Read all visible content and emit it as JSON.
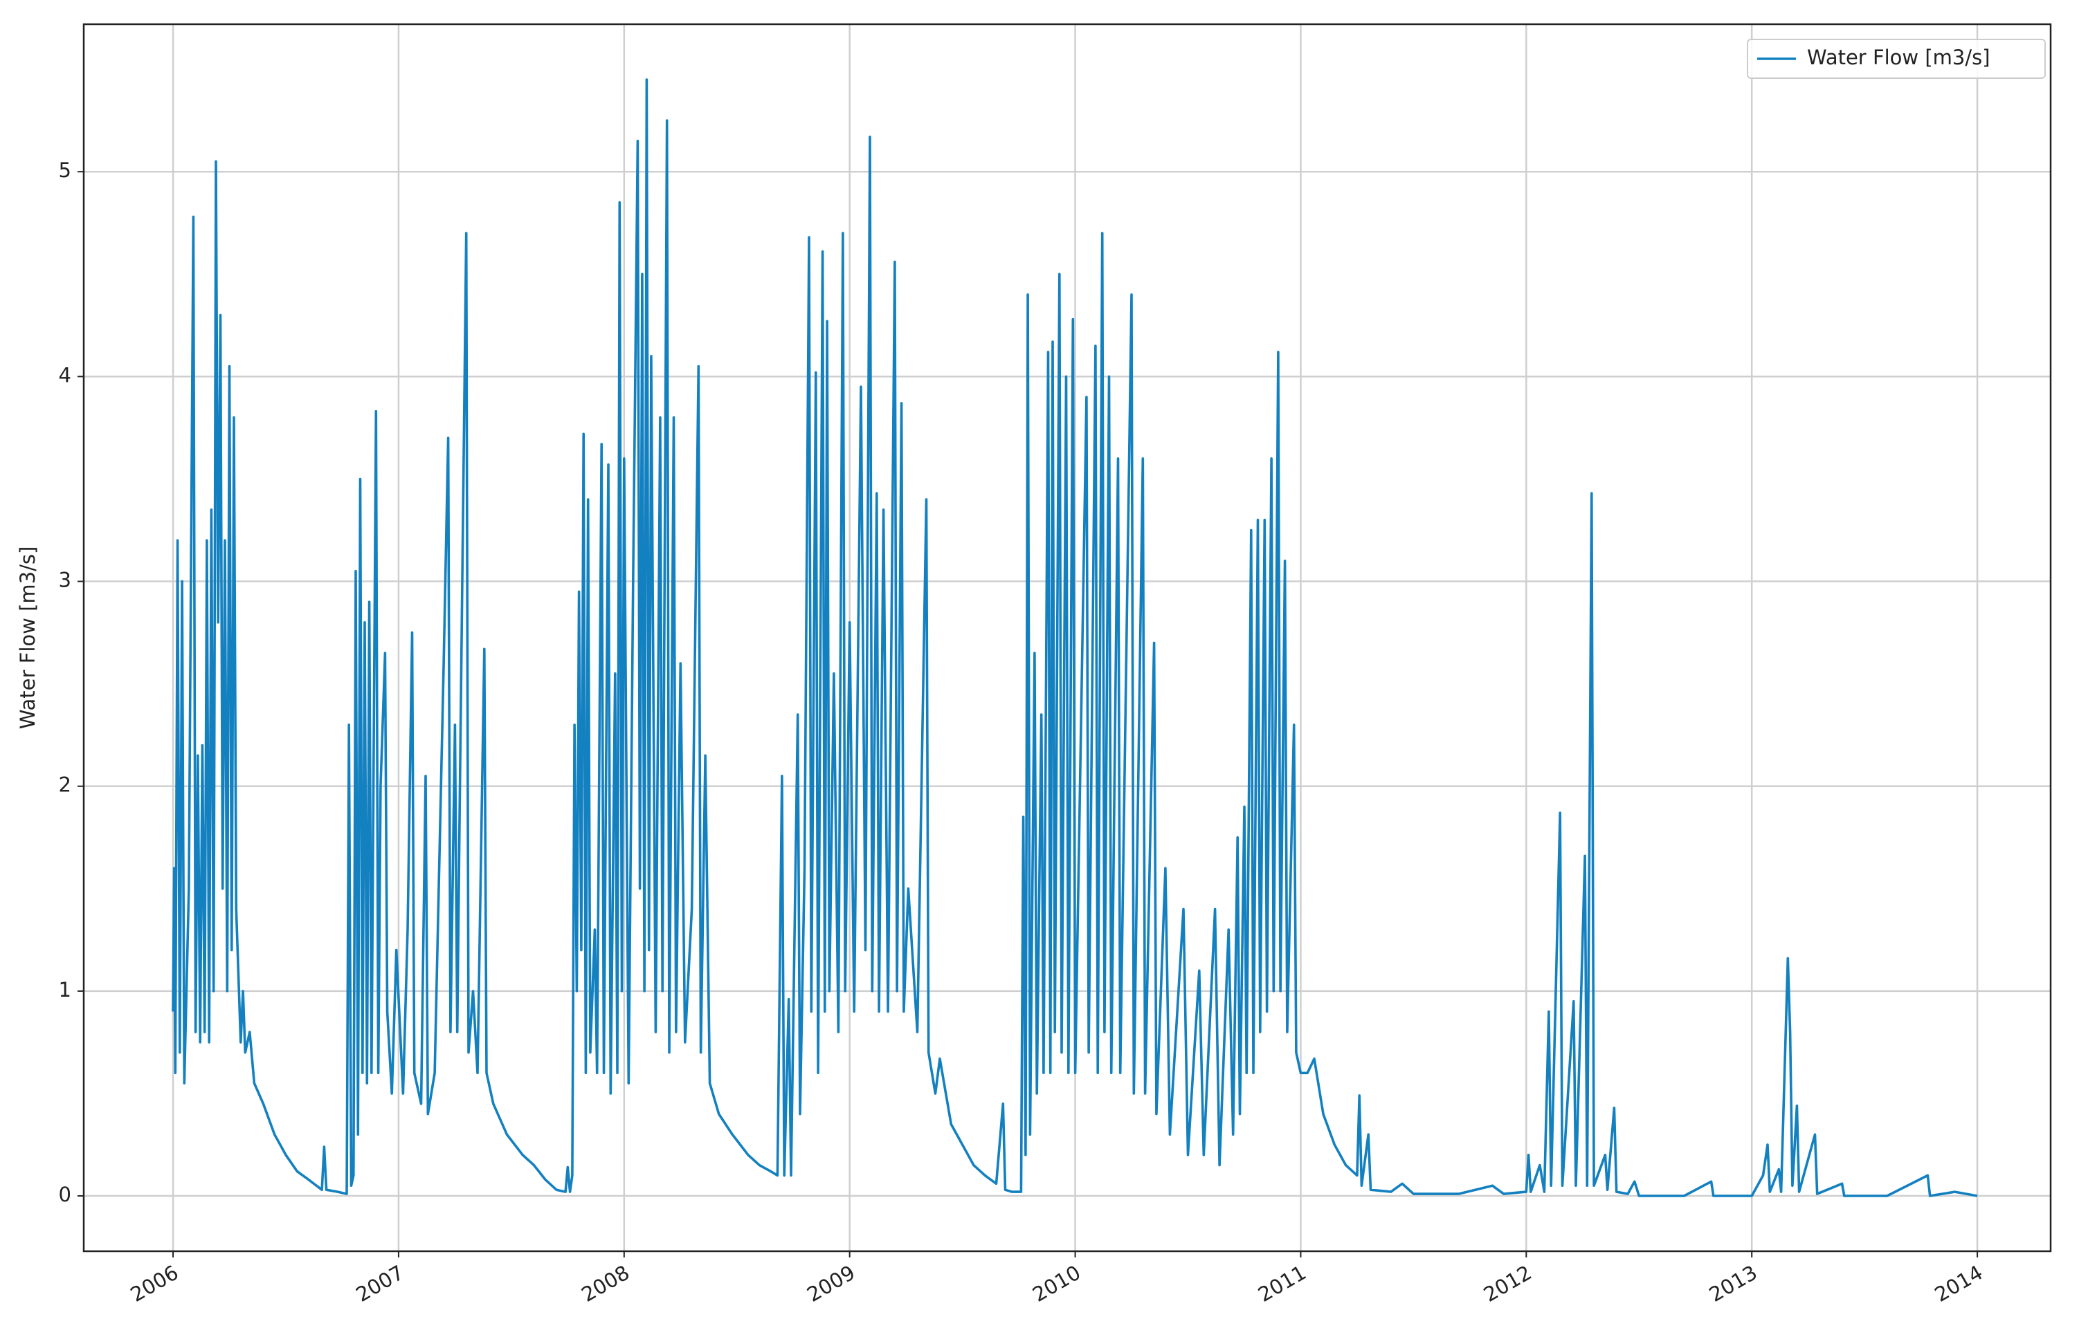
{
  "chart_data": {
    "type": "line",
    "ylabel": "Water Flow [m3/s]",
    "legend": "upper right",
    "grid": true,
    "xlim": [
      2005.604,
      2014.325
    ],
    "ylim": [
      -0.27,
      5.72
    ],
    "xticks": [
      2006,
      2007,
      2008,
      2009,
      2010,
      2011,
      2012,
      2013,
      2014
    ],
    "yticks": [
      0,
      1,
      2,
      3,
      4,
      5
    ],
    "x": [
      2006.0,
      2006.005,
      2006.01,
      2006.02,
      2006.03,
      2006.04,
      2006.05,
      2006.07,
      2006.09,
      2006.1,
      2006.11,
      2006.12,
      2006.13,
      2006.14,
      2006.15,
      2006.16,
      2006.17,
      2006.18,
      2006.19,
      2006.2,
      2006.21,
      2006.22,
      2006.23,
      2006.24,
      2006.25,
      2006.26,
      2006.27,
      2006.28,
      2006.3,
      2006.31,
      2006.32,
      2006.34,
      2006.36,
      2006.4,
      2006.45,
      2006.5,
      2006.55,
      2006.6,
      2006.66,
      2006.67,
      2006.68,
      2006.73,
      2006.77,
      2006.78,
      2006.79,
      2006.8,
      2006.81,
      2006.82,
      2006.83,
      2006.84,
      2006.85,
      2006.86,
      2006.87,
      2006.88,
      2006.9,
      2006.91,
      2006.92,
      2006.94,
      2006.95,
      2006.97,
      2006.99,
      2007.02,
      2007.04,
      2007.06,
      2007.07,
      2007.1,
      2007.12,
      2007.13,
      2007.16,
      2007.2,
      2007.22,
      2007.23,
      2007.25,
      2007.26,
      2007.27,
      2007.3,
      2007.31,
      2007.33,
      2007.35,
      2007.38,
      2007.39,
      2007.42,
      2007.48,
      2007.55,
      2007.6,
      2007.65,
      2007.7,
      2007.74,
      2007.75,
      2007.76,
      2007.77,
      2007.78,
      2007.79,
      2007.8,
      2007.81,
      2007.82,
      2007.83,
      2007.84,
      2007.85,
      2007.87,
      2007.88,
      2007.9,
      2007.91,
      2007.93,
      2007.94,
      2007.96,
      2007.97,
      2007.98,
      2007.99,
      2008.0,
      2008.02,
      2008.04,
      2008.06,
      2008.07,
      2008.08,
      2008.09,
      2008.1,
      2008.11,
      2008.12,
      2008.14,
      2008.16,
      2008.17,
      2008.19,
      2008.2,
      2008.22,
      2008.23,
      2008.25,
      2008.27,
      2008.3,
      2008.33,
      2008.34,
      2008.36,
      2008.38,
      2008.42,
      2008.48,
      2008.55,
      2008.6,
      2008.65,
      2008.68,
      2008.7,
      2008.71,
      2008.73,
      2008.74,
      2008.77,
      2008.78,
      2008.8,
      2008.82,
      2008.83,
      2008.85,
      2008.86,
      2008.88,
      2008.89,
      2008.9,
      2008.91,
      2008.93,
      2008.95,
      2008.97,
      2008.98,
      2009.0,
      2009.02,
      2009.05,
      2009.07,
      2009.09,
      2009.1,
      2009.12,
      2009.13,
      2009.15,
      2009.17,
      2009.2,
      2009.21,
      2009.23,
      2009.24,
      2009.26,
      2009.3,
      2009.34,
      2009.35,
      2009.38,
      2009.4,
      2009.45,
      2009.5,
      2009.55,
      2009.6,
      2009.65,
      2009.68,
      2009.69,
      2009.72,
      2009.76,
      2009.77,
      2009.78,
      2009.79,
      2009.8,
      2009.82,
      2009.83,
      2009.85,
      2009.86,
      2009.88,
      2009.89,
      2009.9,
      2009.91,
      2009.93,
      2009.94,
      2009.96,
      2009.97,
      2009.99,
      2010.0,
      2010.05,
      2010.06,
      2010.09,
      2010.1,
      2010.12,
      2010.13,
      2010.15,
      2010.16,
      2010.19,
      2010.2,
      2010.25,
      2010.26,
      2010.3,
      2010.31,
      2010.35,
      2010.36,
      2010.4,
      2010.42,
      2010.48,
      2010.5,
      2010.55,
      2010.57,
      2010.62,
      2010.64,
      2010.68,
      2010.7,
      2010.72,
      2010.73,
      2010.75,
      2010.76,
      2010.78,
      2010.79,
      2010.81,
      2010.82,
      2010.84,
      2010.85,
      2010.87,
      2010.88,
      2010.9,
      2010.91,
      2010.93,
      2010.94,
      2010.97,
      2010.98,
      2011.0,
      2011.03,
      2011.06,
      2011.1,
      2011.15,
      2011.2,
      2011.25,
      2011.26,
      2011.27,
      2011.3,
      2011.31,
      2011.4,
      2011.45,
      2011.5,
      2011.6,
      2011.7,
      2011.85,
      2011.9,
      2012.0,
      2012.01,
      2012.02,
      2012.06,
      2012.08,
      2012.1,
      2012.11,
      2012.15,
      2012.16,
      2012.21,
      2012.22,
      2012.26,
      2012.27,
      2012.29,
      2012.3,
      2012.35,
      2012.36,
      2012.39,
      2012.4,
      2012.45,
      2012.48,
      2012.5,
      2012.7,
      2012.82,
      2012.83,
      2013.0,
      2013.05,
      2013.07,
      2013.08,
      2013.12,
      2013.13,
      2013.16,
      2013.17,
      2013.18,
      2013.2,
      2013.21,
      2013.28,
      2013.29,
      2013.4,
      2013.41,
      2013.6,
      2013.78,
      2013.79,
      2013.9,
      2014.0
    ],
    "series": [
      {
        "name": "Water Flow [m3/s]",
        "color": "#1380c0",
        "values": [
          0.9,
          1.6,
          0.6,
          3.2,
          0.7,
          3.0,
          0.55,
          1.5,
          4.78,
          0.8,
          2.15,
          0.75,
          2.2,
          0.8,
          3.2,
          0.75,
          3.35,
          1.0,
          5.05,
          2.8,
          4.3,
          1.5,
          3.2,
          1.0,
          4.05,
          1.2,
          3.8,
          1.4,
          0.75,
          1.0,
          0.7,
          0.8,
          0.55,
          0.45,
          0.3,
          0.2,
          0.12,
          0.08,
          0.03,
          0.24,
          0.03,
          0.02,
          0.01,
          2.3,
          0.05,
          0.1,
          3.05,
          0.3,
          3.5,
          0.6,
          2.8,
          0.55,
          2.9,
          0.6,
          3.83,
          0.6,
          2.0,
          2.65,
          0.9,
          0.5,
          1.2,
          0.5,
          1.3,
          2.75,
          0.6,
          0.45,
          2.05,
          0.4,
          0.6,
          2.6,
          3.7,
          0.8,
          2.3,
          0.8,
          1.8,
          4.7,
          0.7,
          1.0,
          0.6,
          2.67,
          0.6,
          0.45,
          0.3,
          0.2,
          0.15,
          0.08,
          0.03,
          0.02,
          0.14,
          0.02,
          0.1,
          2.3,
          1.0,
          2.95,
          1.2,
          3.72,
          0.6,
          3.4,
          0.7,
          1.3,
          0.6,
          3.67,
          0.6,
          3.57,
          0.5,
          2.55,
          0.6,
          4.85,
          1.0,
          3.6,
          0.55,
          3.0,
          5.15,
          1.5,
          4.5,
          1.0,
          5.45,
          1.2,
          4.1,
          0.8,
          3.8,
          1.0,
          5.25,
          0.7,
          3.8,
          0.8,
          2.6,
          0.75,
          1.4,
          4.05,
          0.7,
          2.15,
          0.55,
          0.4,
          0.3,
          0.2,
          0.15,
          0.12,
          0.1,
          2.05,
          0.1,
          0.96,
          0.1,
          2.35,
          0.4,
          1.6,
          4.68,
          0.9,
          4.02,
          0.6,
          4.61,
          0.9,
          4.27,
          1.0,
          2.55,
          0.8,
          4.7,
          1.0,
          2.8,
          0.9,
          3.95,
          1.2,
          5.17,
          1.0,
          3.43,
          0.9,
          3.35,
          0.9,
          4.56,
          1.0,
          3.87,
          0.9,
          1.5,
          0.8,
          3.4,
          0.7,
          0.5,
          0.67,
          0.35,
          0.25,
          0.15,
          0.1,
          0.06,
          0.45,
          0.03,
          0.02,
          0.02,
          1.85,
          0.2,
          4.4,
          0.3,
          2.65,
          0.5,
          2.35,
          0.6,
          4.12,
          0.6,
          4.17,
          0.8,
          4.5,
          0.7,
          4.0,
          0.6,
          4.28,
          0.6,
          3.9,
          0.7,
          4.15,
          0.6,
          4.7,
          0.8,
          4.0,
          0.6,
          3.6,
          0.6,
          4.4,
          0.5,
          3.6,
          0.5,
          2.7,
          0.4,
          1.6,
          0.3,
          1.4,
          0.2,
          1.1,
          0.2,
          1.4,
          0.15,
          1.3,
          0.3,
          1.75,
          0.4,
          1.9,
          0.6,
          3.25,
          0.6,
          3.3,
          0.8,
          3.3,
          0.9,
          3.6,
          1.0,
          4.12,
          1.0,
          3.1,
          0.8,
          2.3,
          0.7,
          0.6,
          0.6,
          0.67,
          0.4,
          0.25,
          0.15,
          0.1,
          0.49,
          0.05,
          0.3,
          0.03,
          0.02,
          0.06,
          0.01,
          0.01,
          0.01,
          0.05,
          0.01,
          0.02,
          0.2,
          0.02,
          0.15,
          0.02,
          0.9,
          0.05,
          1.87,
          0.05,
          0.95,
          0.05,
          1.66,
          0.05,
          3.43,
          0.05,
          0.2,
          0.03,
          0.43,
          0.02,
          0.01,
          0.07,
          0.0,
          0.0,
          0.07,
          0.0,
          0.0,
          0.1,
          0.25,
          0.02,
          0.13,
          0.02,
          1.16,
          0.8,
          0.05,
          0.44,
          0.02,
          0.3,
          0.01,
          0.06,
          0.0,
          0.0,
          0.1,
          0.0,
          0.02,
          0.0
        ]
      }
    ]
  }
}
